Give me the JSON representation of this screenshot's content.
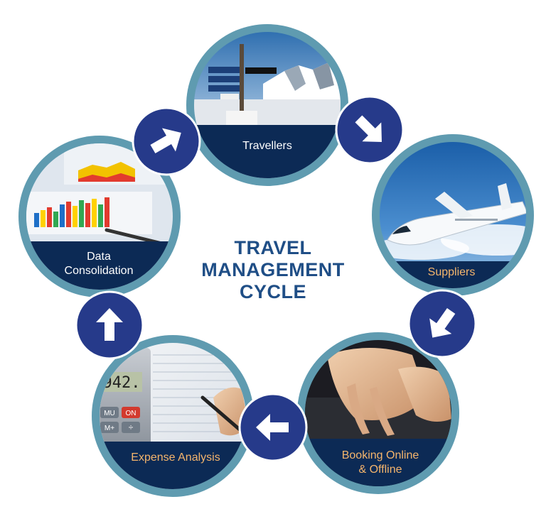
{
  "title_lines": [
    "TRAVEL",
    "MANAGEMENT",
    "CYCLE"
  ],
  "stages": [
    {
      "id": "travellers",
      "label_lines": [
        "Travellers"
      ],
      "image": "signpost-mountain-photo"
    },
    {
      "id": "suppliers",
      "label_lines": [
        "Suppliers"
      ],
      "image": "airplane-photo"
    },
    {
      "id": "booking",
      "label_lines": [
        "Booking Online",
        "& Offline"
      ],
      "image": "typing-hands-photo"
    },
    {
      "id": "expense",
      "label_lines": [
        "Expense Analysis"
      ],
      "image": "calculator-photo"
    },
    {
      "id": "data",
      "label_lines": [
        "Data",
        "Consolidation"
      ],
      "image": "charts-photo"
    }
  ],
  "calculator_display": "942.",
  "calculator_keys": [
    "MU",
    "ON",
    "M+",
    "÷"
  ],
  "colors": {
    "title": "#1f4e86",
    "ring": "#5f9bb0",
    "arrow_disc": "#263a8a",
    "label_band": "#0c2a55",
    "label_white": "#ffffff",
    "label_orange": "#f5b56c"
  },
  "arrow_icon": "right-arrow-icon"
}
